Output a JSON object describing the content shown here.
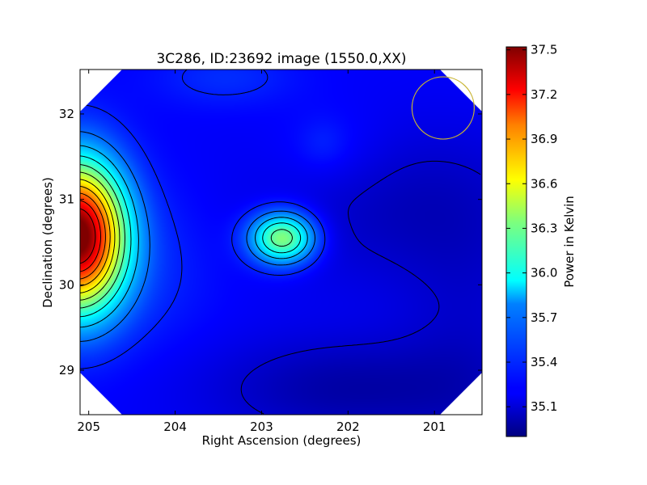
{
  "chart_data": {
    "type": "heatmap",
    "title": "3C286, ID:23692 image (1550.0,XX)",
    "xlabel": "Right Ascension (degrees)",
    "ylabel": "Declination (degrees)",
    "xlim": [
      205.1,
      200.45
    ],
    "ylim": [
      28.48,
      32.52
    ],
    "x_ticks": [
      205,
      204,
      203,
      202,
      201
    ],
    "y_ticks": [
      29,
      30,
      31,
      32
    ],
    "grid": false,
    "colorbar": {
      "label": "Power in Kelvin",
      "range": [
        34.9,
        37.52
      ],
      "ticks": [
        "35.1",
        "35.4",
        "35.7",
        "36.0",
        "36.3",
        "36.6",
        "36.9",
        "37.2",
        "37.5"
      ],
      "colormap": "jet"
    },
    "features": [
      {
        "kind": "peak",
        "ra": 205.08,
        "dec": 30.6,
        "value": 37.45
      },
      {
        "kind": "peak",
        "ra": 202.75,
        "dec": 30.53,
        "value": 36.2
      },
      {
        "kind": "depression",
        "ra": 201.8,
        "dec": 30.85,
        "value": 34.95
      },
      {
        "kind": "depression",
        "ra": 201.7,
        "dec": 28.8,
        "value": 34.95
      }
    ],
    "beam_circle": {
      "ra": 200.9,
      "dec": 32.07,
      "radius_deg": 0.36,
      "color": "#c8b432"
    }
  }
}
